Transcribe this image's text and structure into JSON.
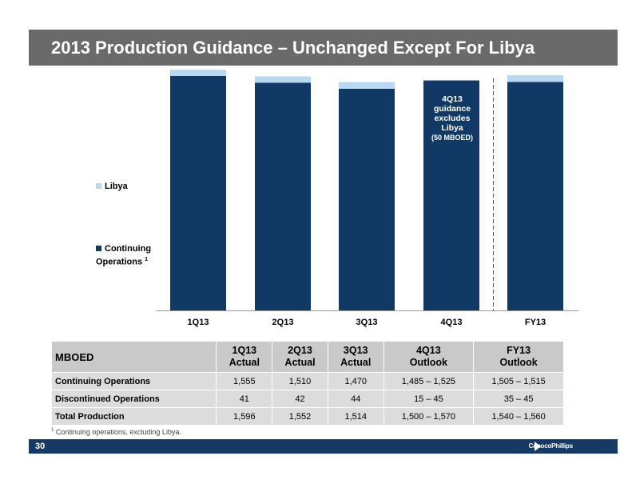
{
  "title": "2013 Production Guidance – Unchanged Except For Libya",
  "chart_data": {
    "type": "bar",
    "stacked": true,
    "categories": [
      "1Q13",
      "2Q13",
      "3Q13",
      "4Q13",
      "FY13"
    ],
    "series": [
      {
        "name": "Continuing Operations",
        "values": [
          1555,
          1510,
          1470,
          1525,
          1515
        ],
        "color": "#103a65"
      },
      {
        "name": "Libya",
        "values": [
          41,
          42,
          44,
          0,
          45
        ],
        "color": "#b9d9f2"
      }
    ],
    "ylim": [
      0,
      1650
    ],
    "grid": false,
    "legend": "left",
    "divider_before": "FY13"
  },
  "legend": {
    "libya": "Libya",
    "continuing_line1": "Continuing",
    "continuing_line2": "Operations",
    "continuing_sup": "1"
  },
  "annotation": {
    "lines": [
      "4Q13",
      "guidance",
      "excludes",
      "Libya"
    ],
    "sub": "(50 MBOED)"
  },
  "table": {
    "headers": [
      {
        "line1": "MBOED",
        "line2": ""
      },
      {
        "line1": "1Q13",
        "line2": "Actual"
      },
      {
        "line1": "2Q13",
        "line2": "Actual"
      },
      {
        "line1": "3Q13",
        "line2": "Actual"
      },
      {
        "line1": "4Q13",
        "line2": "Outlook"
      },
      {
        "line1": "FY13",
        "line2": "Outlook"
      }
    ],
    "rows": [
      [
        "Continuing Operations",
        "1,555",
        "1,510",
        "1,470",
        "1,485 – 1,525",
        "1,505 – 1,515"
      ],
      [
        "Discontinued Operations",
        "41",
        "42",
        "44",
        "15 – 45",
        "35 – 45"
      ],
      [
        "Total Production",
        "1,596",
        "1,552",
        "1,514",
        "1,500 – 1,570",
        "1,540 – 1,560"
      ]
    ]
  },
  "footnote": {
    "sup": "1",
    "text": " Continuing operations, excluding Libya."
  },
  "footer": {
    "page": "30",
    "logo": "ConocoPhillips"
  },
  "icons": {
    "footer_arrow": "arrow-right-icon"
  }
}
